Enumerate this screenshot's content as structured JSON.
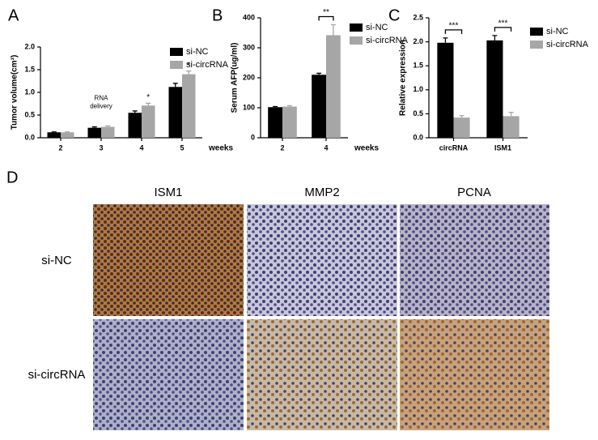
{
  "chart_data": [
    {
      "type": "bar",
      "panel": "A",
      "y_label": "Tumor volume(cm³)",
      "x_label": "weeks",
      "categories": [
        "2",
        "3",
        "4",
        "5"
      ],
      "series": [
        {
          "name": "si-NC",
          "color": "#000000",
          "values": [
            0.12,
            0.22,
            0.55,
            1.12
          ],
          "errors": [
            0.01,
            0.02,
            0.04,
            0.08
          ]
        },
        {
          "name": "si-circRNA",
          "color": "#a6a6a6",
          "values": [
            0.12,
            0.24,
            0.71,
            1.4
          ],
          "errors": [
            0.01,
            0.02,
            0.05,
            0.07
          ]
        }
      ],
      "ylim": [
        0,
        2
      ],
      "yticks": [
        {
          "value": 0,
          "label": "0.0"
        },
        {
          "value": 0.5,
          "label": "0.5"
        },
        {
          "value": 1,
          "label": "1.0"
        },
        {
          "value": 1.5,
          "label": "1.5"
        },
        {
          "value": 2,
          "label": "2.0"
        }
      ],
      "annotations": [
        "RNA",
        "delivery",
        "*",
        "*"
      ]
    },
    {
      "type": "bar",
      "panel": "B",
      "y_label": "Serum AFP(ug/ml)",
      "x_label": "weeks",
      "categories": [
        "2",
        "4"
      ],
      "series": [
        {
          "name": "si-NC",
          "color": "#000000",
          "values": [
            102,
            210
          ],
          "errors": [
            2,
            5
          ]
        },
        {
          "name": "si-circRNA",
          "color": "#a6a6a6",
          "values": [
            104,
            342
          ],
          "errors": [
            3,
            35
          ]
        }
      ],
      "ylim": [
        0,
        400
      ],
      "yticks": [
        0,
        100,
        200,
        300,
        400
      ],
      "annotations": [
        "**"
      ]
    },
    {
      "type": "bar",
      "panel": "C",
      "y_label": "Relative expression",
      "categories": [
        "circRNA",
        "ISM1"
      ],
      "series": [
        {
          "name": "si-NC",
          "color": "#000000",
          "values": [
            1.98,
            2.03
          ],
          "errors": [
            0.1,
            0.1
          ]
        },
        {
          "name": "si-circRNA",
          "color": "#a6a6a6",
          "values": [
            0.42,
            0.45
          ],
          "errors": [
            0.04,
            0.08
          ]
        }
      ],
      "ylim": [
        0,
        2.5
      ],
      "yticks": [
        {
          "value": 0,
          "label": "0.0"
        },
        {
          "value": 0.5,
          "label": "0.5"
        },
        {
          "value": 1,
          "label": "1.0"
        },
        {
          "value": 1.5,
          "label": "1.5"
        },
        {
          "value": 2,
          "label": "2.0"
        },
        {
          "value": 2.5,
          "label": "2.5"
        }
      ],
      "annotations": [
        "***",
        "***"
      ]
    }
  ],
  "panel_d": {
    "panel": "D",
    "columns": [
      "ISM1",
      "MMP2",
      "PCNA"
    ],
    "rows": [
      "si-NC",
      "si-circRNA"
    ]
  }
}
